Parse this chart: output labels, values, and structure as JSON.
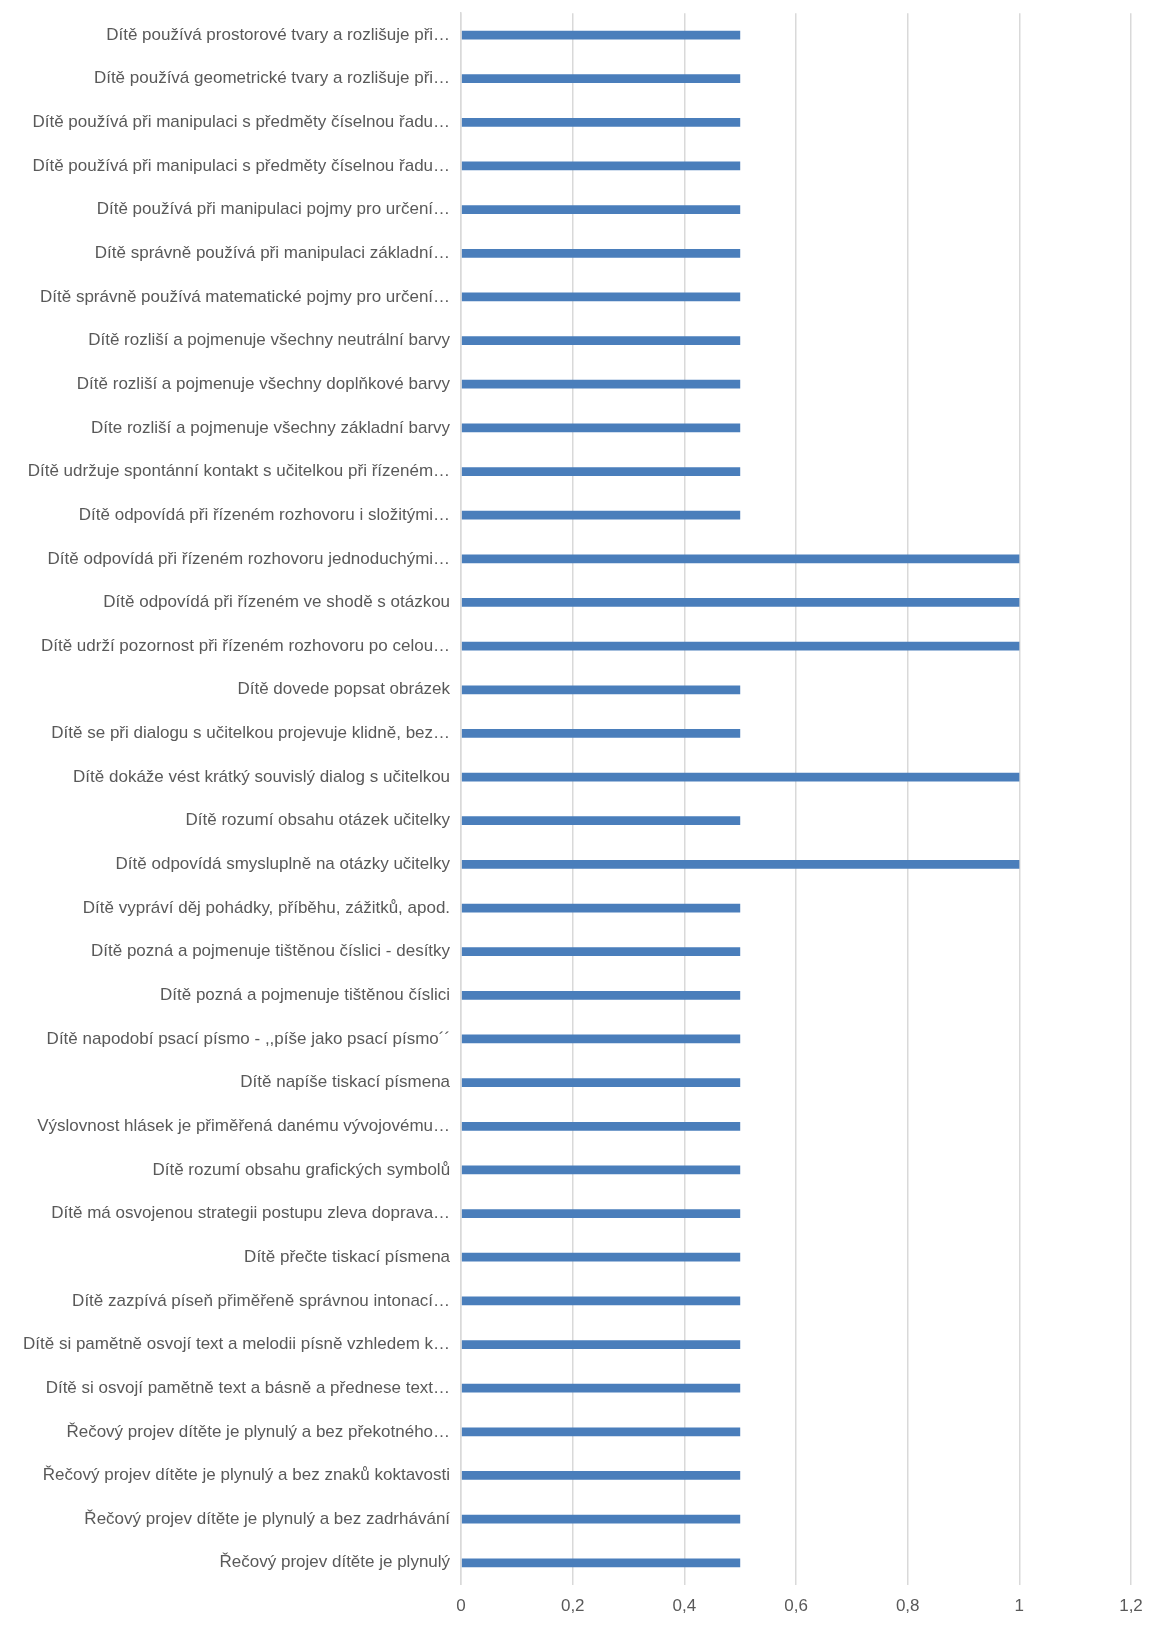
{
  "chart_data": {
    "type": "bar",
    "orientation": "horizontal",
    "categories": [
      "Dítě používá prostorové tvary a rozlišuje při…",
      "Dítě používá geometrické tvary a rozlišuje při…",
      "Dítě používá při manipulaci s předměty číselnou řadu…",
      "Dítě používá při manipulaci s předměty číselnou řadu…",
      "Dítě používá při manipulaci pojmy pro určení…",
      "Dítě správně používá při manipulaci základní…",
      "Dítě správně používá matematické pojmy pro určení…",
      "Dítě rozliší a pojmenuje všechny neutrální barvy",
      "Dítě rozliší a pojmenuje všechny doplňkové barvy",
      "Díte rozliší a pojmenuje všechny základní barvy",
      "Dítě udržuje spontánní kontakt s učitelkou při řízeném…",
      "Dítě odpovídá při řízeném rozhovoru i složitými…",
      "Dítě odpovídá při řízeném rozhovoru jednoduchými…",
      "Dítě odpovídá při řízeném ve shodě s otázkou",
      "Dítě udrží pozornost při řízeném rozhovoru po celou…",
      "Dítě dovede popsat obrázek",
      "Dítě se při dialogu s učitelkou projevuje klidně, bez…",
      "Dítě dokáže vést krátký souvislý dialog s učitelkou",
      "Dítě rozumí obsahu otázek učitelky",
      "Dítě odpovídá smysluplně na otázky učitelky",
      "Dítě vypráví děj pohádky, příběhu, zážitků, apod.",
      "Dítě pozná a pojmenuje tištěnou číslici - desítky",
      "Dítě pozná a pojmenuje tištěnou číslici",
      "Dítě napodobí psací písmo - ,,píše jako psací písmo´´",
      "Dítě napíše tiskací písmena",
      "Výslovnost hlásek je přiměřená danému vývojovému…",
      "Dítě rozumí obsahu grafických symbolů",
      "Dítě má osvojenou strategii postupu zleva doprava…",
      "Dítě přečte tiskací písmena",
      "Dítě zazpívá píseň přiměřeně správnou intonací…",
      "Dítě si pamětně osvojí text a melodii písně vzhledem k…",
      "Dítě si osvojí pamětně text a básně a přednese text…",
      "Řečový projev dítěte je plynulý a bez překotného…",
      "Řečový projev dítěte je plynulý a bez znaků koktavosti",
      "Řečový projev dítěte je plynulý a bez zadrhávání",
      "Řečový projev dítěte je plynulý"
    ],
    "values": [
      0.5,
      0.5,
      0.5,
      0.5,
      0.5,
      0.5,
      0.5,
      0.5,
      0.5,
      0.5,
      0.5,
      0.5,
      1,
      1,
      1,
      0.5,
      0.5,
      1,
      0.5,
      1,
      0.5,
      0.5,
      0.5,
      0.5,
      0.5,
      0.5,
      0.5,
      0.5,
      0.5,
      0.5,
      0.5,
      0.5,
      0.5,
      0.5,
      0.5,
      0.5
    ],
    "color": "#4a7ebb",
    "xlim": [
      0,
      1.2
    ],
    "xticks": [
      0,
      {
        "value": 0.2,
        "label": "0,2"
      },
      {
        "value": 0.4,
        "label": "0,4"
      },
      {
        "value": 0.6,
        "label": "0,6"
      },
      {
        "value": 0.8,
        "label": "0,8"
      },
      1,
      {
        "value": 1.2,
        "label": "1,2"
      }
    ],
    "grid": "x",
    "legend": false
  }
}
